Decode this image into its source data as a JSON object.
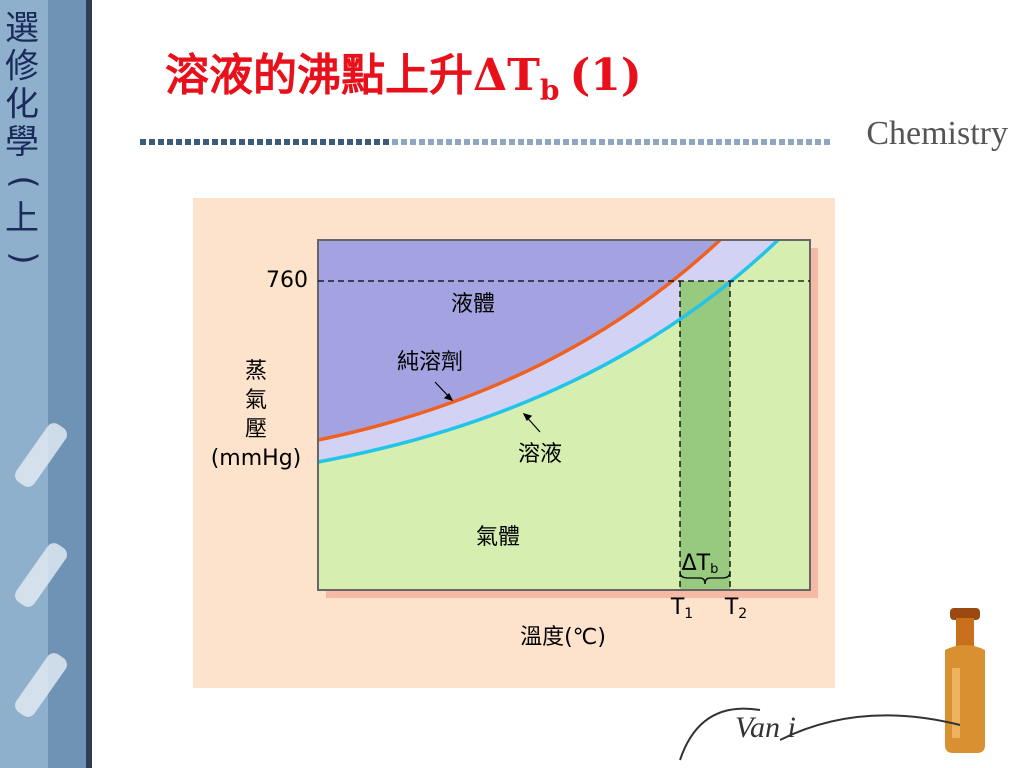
{
  "sidebar": {
    "chars": [
      "選",
      "修",
      "化",
      "學",
      "(",
      "上",
      ")"
    ]
  },
  "header": {
    "title": "溶液的沸點上升ΔT",
    "title_sub": "b",
    "title_suffix": "(1)",
    "brand": "Chemistry"
  },
  "diagram": {
    "y_label_lines": [
      "蒸",
      "氣",
      "壓",
      "(mmHg)"
    ],
    "pressure_label": "760",
    "liquid": "液體",
    "gas": "氣體",
    "solvent": "純溶劑",
    "solution": "溶液",
    "delta": "ΔT",
    "delta_sub": "b",
    "t1": "T",
    "t1_sub": "1",
    "t2": "T",
    "t2_sub": "2",
    "x_label": "溫度(℃)"
  },
  "logo": "Van i"
}
